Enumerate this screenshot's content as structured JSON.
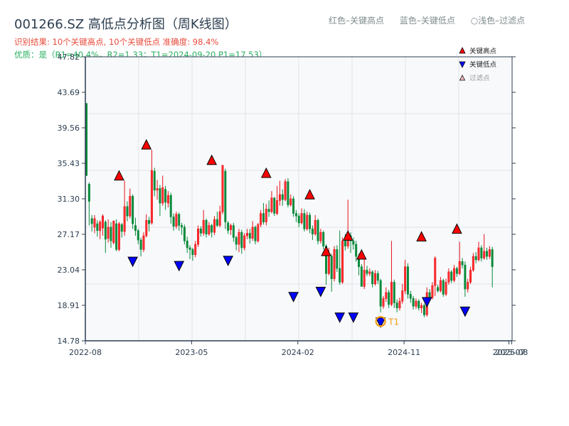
{
  "title": "001266.SZ 高低点分析图（周K线图）",
  "subtitle_result": "识别结果: 10个关键高点, 10个关键低点   准确度: 98.4%",
  "subtitle_quality": "优质：是（R1=40.4%，R2=1.33；T1=2024-09-20 P1=17.53）",
  "top_legend": {
    "red": "红色–关键高点",
    "blue": "蓝色–关键低点",
    "light": "○浅色–过滤点"
  },
  "colors": {
    "up": "#e8141c",
    "down": "#0a8a3a",
    "high_marker": "#ff0000",
    "low_marker": "#0000ff",
    "t1_ring": "#f39c12",
    "plot_bg": "#f7f9fb",
    "grid": "#e1e4e8",
    "axis": "#2c3e50"
  },
  "chart_data": {
    "type": "candlestick",
    "title": "001266.SZ 高低点分析图（周K线图）",
    "ylim": [
      14.78,
      47.82
    ],
    "yticks": [
      "14.78",
      "18.91",
      "23.04",
      "27.17",
      "31.30",
      "35.43",
      "39.56",
      "43.69",
      "47.82"
    ],
    "xticks": [
      {
        "label": "2022-08",
        "week": 0
      },
      {
        "label": "2023-05",
        "week": 39
      },
      {
        "label": "2024-02",
        "week": 78
      },
      {
        "label": "2024-11",
        "week": 117
      },
      {
        "label": "2025-07",
        "week": 155.5
      },
      {
        "label": "2025-08",
        "week": 156.5
      }
    ],
    "legend": [
      {
        "label": "关键高点",
        "marker": "triangle-up",
        "color": "#ff0000"
      },
      {
        "label": "关键低点",
        "marker": "triangle-down",
        "color": "#0000ff"
      },
      {
        "label": "过滤点",
        "marker": "triangle-up-outline",
        "color": "#ffc0cb"
      }
    ],
    "legend_position": "upper right",
    "grid": true,
    "candles": [
      [
        42.4,
        34.0,
        42.4,
        34.0
      ],
      [
        33.0,
        31.0,
        33.2,
        28.2
      ],
      [
        29.0,
        28.4,
        29.4,
        27.5
      ],
      [
        28.0,
        29.0,
        29.4,
        27.3
      ],
      [
        28.4,
        27.6,
        28.8,
        26.9
      ],
      [
        27.6,
        28.6,
        28.8,
        26.6
      ],
      [
        27.9,
        29.3,
        29.5,
        27.0
      ],
      [
        28.6,
        26.6,
        28.8,
        25.0
      ],
      [
        26.7,
        28.0,
        28.9,
        26.2
      ],
      [
        28.0,
        26.4,
        28.6,
        25.6
      ],
      [
        26.2,
        28.7,
        28.8,
        26.0
      ],
      [
        28.4,
        25.4,
        28.9,
        25.2
      ],
      [
        25.4,
        28.4,
        28.6,
        25.2
      ],
      [
        28.3,
        27.5,
        28.5,
        26.8
      ],
      [
        27.5,
        30.4,
        33.4,
        27.0
      ],
      [
        30.4,
        29.3,
        31.0,
        28.7
      ],
      [
        29.3,
        31.6,
        32.5,
        29.0
      ],
      [
        31.6,
        28.4,
        31.8,
        27.8
      ],
      [
        28.2,
        27.6,
        29.1,
        27.0
      ],
      [
        27.6,
        26.5,
        27.8,
        26.0
      ],
      [
        26.5,
        25.4,
        26.8,
        24.6
      ],
      [
        25.4,
        27.0,
        27.4,
        25.1
      ],
      [
        27.0,
        28.8,
        29.5,
        26.8
      ],
      [
        28.8,
        28.4,
        29.2,
        27.5
      ],
      [
        28.5,
        34.6,
        37.0,
        28.3
      ],
      [
        34.5,
        32.3,
        34.9,
        31.6
      ],
      [
        32.3,
        32.5,
        33.5,
        31.2
      ],
      [
        32.5,
        30.8,
        32.9,
        29.3
      ],
      [
        30.8,
        32.6,
        34.0,
        30.5
      ],
      [
        32.4,
        30.9,
        32.8,
        30.0
      ],
      [
        30.8,
        31.7,
        32.2,
        30.3
      ],
      [
        31.7,
        29.2,
        32.0,
        28.4
      ],
      [
        29.2,
        28.1,
        29.6,
        27.6
      ],
      [
        28.1,
        29.5,
        29.8,
        27.8
      ],
      [
        29.5,
        28.2,
        29.7,
        27.6
      ],
      [
        28.2,
        28.0,
        28.5,
        27.1
      ],
      [
        28.0,
        26.4,
        28.3,
        26.0
      ],
      [
        26.4,
        25.6,
        26.9,
        25.0
      ],
      [
        25.6,
        25.4,
        25.9,
        24.3
      ],
      [
        25.4,
        24.8,
        25.6,
        24.1
      ],
      [
        24.8,
        26.0,
        26.4,
        24.5
      ],
      [
        26.0,
        27.8,
        28.2,
        25.7
      ],
      [
        27.8,
        27.3,
        28.1,
        26.9
      ],
      [
        27.3,
        28.8,
        30.0,
        27.0
      ],
      [
        28.8,
        27.2,
        29.0,
        26.8
      ],
      [
        27.2,
        28.2,
        28.6,
        27.0
      ],
      [
        28.2,
        27.4,
        28.4,
        26.8
      ],
      [
        27.4,
        28.9,
        29.3,
        27.1
      ],
      [
        28.9,
        28.2,
        29.8,
        28.0
      ],
      [
        28.2,
        29.8,
        30.5,
        28.0
      ],
      [
        29.8,
        35.2,
        35.2,
        29.5
      ],
      [
        34.5,
        28.6,
        34.8,
        27.8
      ],
      [
        28.5,
        27.6,
        28.7,
        27.2
      ],
      [
        27.7,
        28.2,
        28.4,
        27.1
      ],
      [
        28.2,
        26.8,
        28.5,
        26.3
      ],
      [
        26.8,
        26.0,
        27.0,
        25.3
      ],
      [
        26.0,
        27.4,
        27.8,
        25.1
      ],
      [
        27.4,
        25.6,
        27.7,
        24.9
      ],
      [
        25.6,
        27.0,
        27.3,
        25.3
      ],
      [
        27.0,
        27.3,
        27.8,
        26.6
      ],
      [
        27.3,
        26.7,
        27.8,
        26.1
      ],
      [
        26.7,
        28.0,
        28.7,
        26.4
      ],
      [
        28.0,
        26.4,
        28.2,
        26.0
      ],
      [
        26.4,
        28.3,
        28.5,
        26.2
      ],
      [
        28.3,
        29.6,
        30.0,
        28.0
      ],
      [
        29.6,
        28.6,
        30.8,
        28.3
      ],
      [
        28.6,
        30.1,
        30.7,
        28.2
      ],
      [
        30.1,
        29.8,
        31.1,
        29.2
      ],
      [
        29.8,
        31.4,
        32.2,
        29.6
      ],
      [
        31.4,
        29.6,
        31.5,
        29.3
      ],
      [
        29.6,
        31.1,
        32.8,
        29.4
      ],
      [
        31.1,
        31.8,
        33.4,
        30.5
      ],
      [
        31.8,
        31.2,
        32.4,
        30.5
      ],
      [
        31.2,
        33.3,
        33.6,
        31.0
      ],
      [
        33.3,
        30.6,
        33.7,
        30.3
      ],
      [
        30.6,
        31.3,
        31.8,
        30.4
      ],
      [
        31.3,
        29.6,
        31.6,
        29.2
      ],
      [
        29.6,
        29.3,
        30.0,
        28.6
      ],
      [
        29.3,
        28.5,
        29.6,
        28.0
      ],
      [
        28.5,
        29.6,
        30.2,
        28.3
      ],
      [
        29.6,
        27.8,
        30.1,
        27.5
      ],
      [
        27.8,
        29.4,
        29.8,
        27.6
      ],
      [
        29.4,
        27.8,
        29.7,
        27.3
      ],
      [
        27.8,
        27.2,
        28.2,
        26.5
      ],
      [
        27.2,
        28.8,
        29.4,
        27.0
      ],
      [
        28.8,
        26.4,
        29.0,
        26.0
      ],
      [
        26.4,
        27.4,
        27.8,
        26.1
      ],
      [
        27.4,
        25.8,
        27.6,
        25.4
      ],
      [
        25.8,
        22.6,
        26.0,
        21.3
      ],
      [
        22.6,
        24.6,
        25.6,
        22.4
      ],
      [
        24.6,
        22.0,
        24.9,
        20.5
      ],
      [
        22.0,
        25.4,
        25.8,
        21.7
      ],
      [
        25.4,
        23.2,
        25.9,
        22.8
      ],
      [
        23.2,
        21.6,
        27.6,
        21.3
      ],
      [
        21.6,
        26.4,
        26.8,
        21.4
      ],
      [
        26.4,
        25.8,
        27.2,
        25.3
      ],
      [
        25.8,
        27.0,
        31.2,
        25.5
      ],
      [
        27.0,
        26.4,
        27.4,
        25.0
      ],
      [
        26.4,
        26.0,
        26.8,
        25.4
      ],
      [
        26.0,
        24.6,
        26.4,
        24.0
      ],
      [
        24.6,
        23.4,
        24.9,
        22.4
      ],
      [
        23.4,
        21.1,
        23.7,
        21.1
      ],
      [
        21.1,
        23.0,
        24.6,
        20.8
      ],
      [
        23.0,
        22.6,
        23.5,
        22.3
      ],
      [
        22.6,
        22.8,
        23.2,
        22.3
      ],
      [
        22.8,
        21.4,
        23.0,
        21.0
      ],
      [
        21.4,
        22.6,
        23.0,
        21.2
      ],
      [
        22.6,
        21.8,
        22.9,
        21.4
      ],
      [
        21.8,
        18.8,
        22.0,
        18.1
      ],
      [
        18.8,
        19.7,
        20.0,
        18.5
      ],
      [
        19.7,
        20.4,
        21.0,
        19.3
      ],
      [
        20.4,
        19.0,
        20.7,
        18.6
      ],
      [
        19.0,
        21.6,
        26.4,
        18.8
      ],
      [
        21.6,
        19.2,
        21.9,
        18.6
      ],
      [
        19.2,
        18.6,
        19.6,
        18.1
      ],
      [
        18.6,
        19.4,
        19.8,
        18.3
      ],
      [
        19.4,
        20.6,
        21.4,
        19.1
      ],
      [
        20.6,
        23.4,
        24.2,
        20.2
      ],
      [
        23.4,
        20.2,
        23.8,
        19.7
      ],
      [
        20.2,
        19.7,
        20.6,
        19.2
      ],
      [
        19.7,
        18.8,
        20.0,
        18.4
      ],
      [
        18.8,
        19.4,
        19.7,
        18.5
      ],
      [
        19.4,
        18.6,
        19.6,
        18.3
      ],
      [
        18.6,
        18.9,
        19.2,
        18.0
      ],
      [
        18.9,
        17.8,
        19.1,
        17.53
      ],
      [
        17.8,
        20.4,
        21.0,
        17.6
      ],
      [
        20.4,
        19.8,
        20.8,
        19.4
      ],
      [
        19.8,
        21.2,
        21.6,
        19.6
      ],
      [
        21.2,
        24.4,
        24.6,
        20.0
      ],
      [
        21.0,
        20.6,
        21.3,
        20.4
      ],
      [
        20.6,
        21.8,
        22.2,
        20.4
      ],
      [
        21.8,
        20.2,
        22.0,
        19.9
      ],
      [
        20.2,
        21.6,
        22.0,
        20.0
      ],
      [
        21.6,
        22.8,
        23.2,
        21.3
      ],
      [
        22.8,
        21.8,
        23.0,
        21.5
      ],
      [
        21.8,
        23.2,
        23.6,
        21.6
      ],
      [
        23.2,
        22.6,
        23.4,
        22.2
      ],
      [
        22.6,
        24.0,
        26.3,
        22.4
      ],
      [
        24.0,
        23.6,
        24.4,
        23.2
      ],
      [
        23.6,
        20.8,
        24.0,
        19.9
      ],
      [
        20.8,
        21.6,
        22.0,
        20.4
      ],
      [
        21.6,
        23.0,
        23.4,
        21.4
      ],
      [
        23.0,
        24.6,
        25.0,
        22.8
      ],
      [
        24.6,
        24.2,
        25.1,
        23.8
      ],
      [
        24.2,
        25.6,
        26.3,
        24.0
      ],
      [
        25.6,
        24.4,
        25.9,
        24.0
      ],
      [
        24.4,
        25.2,
        27.2,
        24.2
      ],
      [
        25.2,
        24.6,
        25.6,
        24.2
      ],
      [
        24.6,
        25.4,
        25.8,
        24.3
      ],
      [
        25.4,
        23.4,
        25.7,
        21.0
      ]
    ],
    "key_highs": [
      {
        "week": 12,
        "price": 33.4
      },
      {
        "week": 22,
        "price": 37.0
      },
      {
        "week": 46,
        "price": 35.2
      },
      {
        "week": 66,
        "price": 33.7
      },
      {
        "week": 82,
        "price": 31.2
      },
      {
        "week": 88,
        "price": 24.6
      },
      {
        "week": 96,
        "price": 26.4
      },
      {
        "week": 101,
        "price": 24.2
      },
      {
        "week": 123,
        "price": 26.3
      },
      {
        "week": 136,
        "price": 27.2
      }
    ],
    "key_lows": [
      {
        "week": 17,
        "price": 24.6
      },
      {
        "week": 34,
        "price": 24.1
      },
      {
        "week": 52,
        "price": 24.7
      },
      {
        "week": 76,
        "price": 20.5
      },
      {
        "week": 86,
        "price": 21.1
      },
      {
        "week": 93,
        "price": 18.1
      },
      {
        "week": 98,
        "price": 18.1
      },
      {
        "week": 108,
        "price": 17.53
      },
      {
        "week": 125,
        "price": 19.9
      },
      {
        "week": 139,
        "price": 18.8
      }
    ],
    "t1": {
      "label": "T1",
      "date": "2024-09-20",
      "price": 17.53,
      "week": 108
    }
  }
}
